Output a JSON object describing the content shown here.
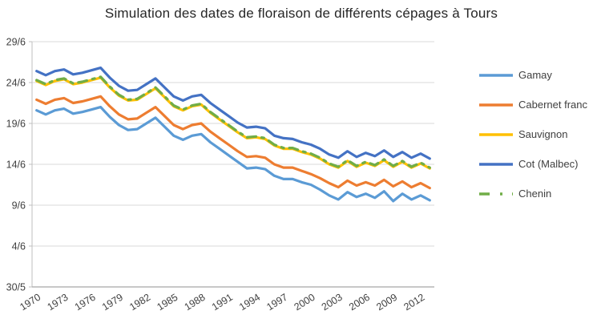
{
  "title": "Simulation des dates de floraison de différents cépages à Tours",
  "chart_data": {
    "type": "line",
    "title": "Simulation des dates de floraison de différents cépages à Tours",
    "xlabel": "",
    "ylabel": "",
    "grid": true,
    "legend_position": "right",
    "x": [
      1970,
      1971,
      1972,
      1973,
      1974,
      1975,
      1976,
      1977,
      1978,
      1979,
      1980,
      1981,
      1982,
      1983,
      1984,
      1985,
      1986,
      1987,
      1988,
      1989,
      1990,
      1991,
      1992,
      1993,
      1994,
      1995,
      1996,
      1997,
      1998,
      1999,
      2000,
      2001,
      2002,
      2003,
      2004,
      2005,
      2006,
      2007,
      2008,
      2009,
      2010,
      2011,
      2012,
      2013
    ],
    "x_tick_labels": [
      "1970",
      "1973",
      "1976",
      "1979",
      "1982",
      "1985",
      "1988",
      "1991",
      "1994",
      "1997",
      "2000",
      "2003",
      "2006",
      "2009",
      "2012"
    ],
    "y_axis": {
      "min": 0,
      "max": 30,
      "values_encoding": "days after 30/5 (30 May); e.g. 25 = 24/6",
      "tick_values": [
        0,
        5,
        10,
        15,
        20,
        25,
        30
      ],
      "tick_labels": [
        "30/5",
        "4/6",
        "9/6",
        "14/6",
        "19/6",
        "24/6",
        "29/6"
      ]
    },
    "series": [
      {
        "name": "Gamay",
        "color": "#5B9BD5",
        "line_style": "solid",
        "values": [
          21.6,
          21.1,
          21.6,
          21.8,
          21.2,
          21.4,
          21.7,
          22.0,
          20.8,
          19.8,
          19.2,
          19.3,
          20.0,
          20.7,
          19.6,
          18.5,
          18.0,
          18.5,
          18.7,
          17.7,
          16.9,
          16.1,
          15.3,
          14.5,
          14.6,
          14.4,
          13.6,
          13.2,
          13.2,
          12.8,
          12.5,
          11.9,
          11.2,
          10.7,
          11.6,
          11.0,
          11.4,
          10.9,
          11.7,
          10.5,
          11.4,
          10.7,
          11.2,
          10.6
        ]
      },
      {
        "name": "Cabernet franc",
        "color": "#ED7D31",
        "line_style": "solid",
        "values": [
          22.9,
          22.4,
          22.9,
          23.1,
          22.5,
          22.7,
          23.0,
          23.3,
          22.1,
          21.1,
          20.5,
          20.6,
          21.3,
          22.0,
          20.9,
          19.8,
          19.3,
          19.8,
          20.0,
          19.0,
          18.2,
          17.4,
          16.6,
          15.9,
          16.0,
          15.8,
          15.0,
          14.6,
          14.6,
          14.2,
          13.8,
          13.3,
          12.7,
          12.2,
          13.0,
          12.4,
          12.8,
          12.4,
          13.1,
          12.3,
          12.9,
          12.2,
          12.7,
          12.1
        ]
      },
      {
        "name": "Sauvignon",
        "color": "#FFC000",
        "line_style": "solid",
        "values": [
          25.2,
          24.7,
          25.2,
          25.4,
          24.8,
          25.0,
          25.3,
          25.6,
          24.4,
          23.4,
          22.8,
          22.9,
          23.6,
          24.3,
          23.2,
          22.1,
          21.6,
          22.1,
          22.3,
          21.3,
          20.5,
          19.7,
          18.9,
          18.2,
          18.3,
          18.1,
          17.3,
          16.9,
          16.9,
          16.5,
          16.2,
          15.7,
          15.0,
          14.6,
          15.4,
          14.7,
          15.2,
          14.8,
          15.5,
          14.7,
          15.3,
          14.6,
          15.1,
          14.5
        ]
      },
      {
        "name": "Cot (Malbec)",
        "color": "#4472C4",
        "line_style": "solid",
        "values": [
          26.4,
          25.9,
          26.4,
          26.6,
          26.0,
          26.2,
          26.5,
          26.8,
          25.6,
          24.6,
          24.0,
          24.1,
          24.8,
          25.5,
          24.4,
          23.3,
          22.8,
          23.3,
          23.5,
          22.5,
          21.7,
          20.9,
          20.1,
          19.5,
          19.6,
          19.4,
          18.5,
          18.2,
          18.1,
          17.7,
          17.4,
          16.9,
          16.2,
          15.8,
          16.6,
          15.9,
          16.4,
          16.0,
          16.7,
          15.9,
          16.5,
          15.8,
          16.3,
          15.7
        ]
      },
      {
        "name": "Chenin",
        "color": "#70AD47",
        "line_style": "dash-dot",
        "values": [
          25.3,
          24.8,
          25.3,
          25.5,
          24.9,
          25.1,
          25.4,
          25.7,
          24.5,
          23.5,
          22.9,
          23.0,
          23.7,
          24.4,
          23.3,
          22.2,
          21.7,
          22.2,
          22.4,
          21.4,
          20.6,
          19.8,
          19.0,
          18.3,
          18.4,
          18.2,
          17.4,
          17.0,
          17.0,
          16.6,
          16.3,
          15.8,
          15.1,
          14.7,
          15.5,
          14.8,
          15.3,
          14.9,
          15.6,
          14.8,
          15.4,
          14.7,
          15.2,
          14.6
        ]
      }
    ],
    "style": {
      "background": "#FFFFFF",
      "gridline_color": "#D9D9D9",
      "axis_color": "#BFBFBF",
      "x_axis_line_color": "#A6A6A6",
      "label_color": "#404040",
      "title_color": "#262626"
    }
  }
}
